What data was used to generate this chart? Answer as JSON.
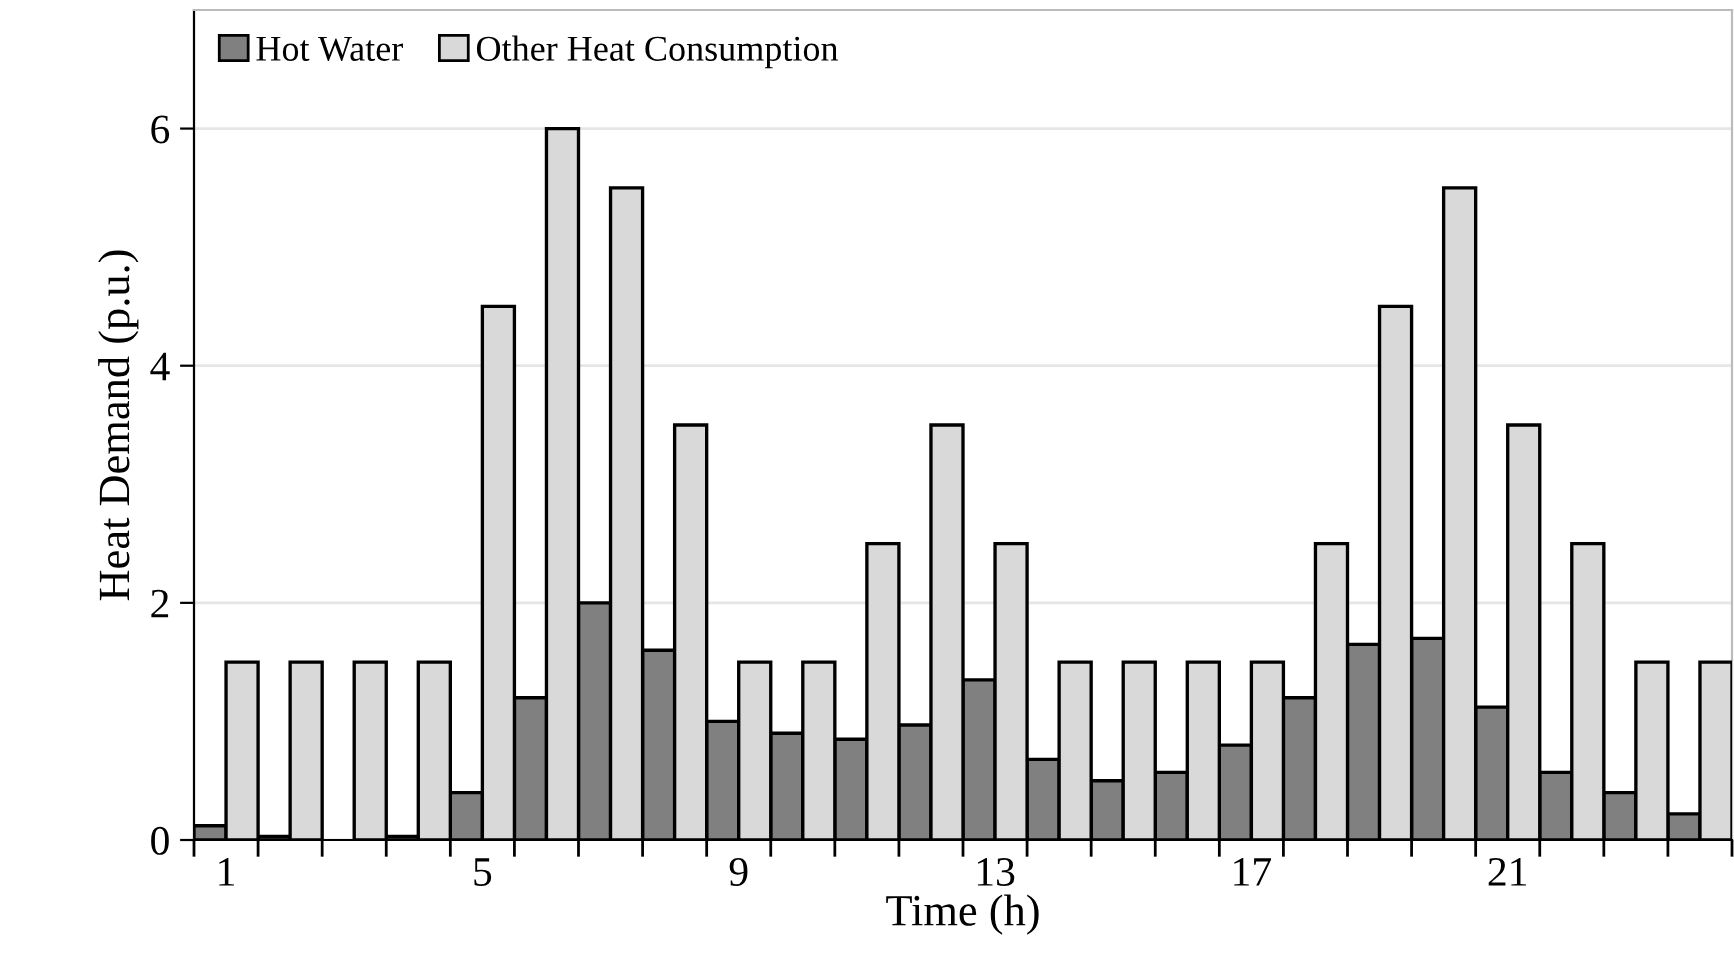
{
  "chart_data": {
    "type": "bar",
    "xlabel": "Time (h)",
    "ylabel": "Heat Demand (p.u.)",
    "categories": [
      "1",
      null,
      null,
      null,
      "5",
      null,
      null,
      null,
      "9",
      null,
      null,
      null,
      "13",
      null,
      null,
      null,
      "17",
      null,
      null,
      null,
      "21",
      null,
      null,
      null
    ],
    "series": [
      {
        "name": "Hot Water",
        "color": "#808080",
        "values": [
          0.12,
          0.03,
          null,
          0.03,
          0.4,
          1.2,
          2.0,
          1.6,
          1.0,
          0.9,
          0.85,
          0.97,
          1.35,
          0.68,
          0.5,
          0.57,
          0.8,
          1.2,
          1.65,
          1.7,
          1.12,
          0.57,
          0.4,
          0.22
        ]
      },
      {
        "name": "Other Heat Consumption",
        "color": "#d9d9d9",
        "values": [
          1.5,
          1.5,
          1.5,
          1.5,
          4.5,
          6,
          5.5,
          3.5,
          1.5,
          1.5,
          2.5,
          3.5,
          2.5,
          1.5,
          1.5,
          1.5,
          1.5,
          2.5,
          4.5,
          5.5,
          3.5,
          2.5,
          1.5,
          1.5
        ]
      }
    ],
    "ylim": [
      0,
      7
    ],
    "yticks": [
      0,
      2,
      4,
      6
    ],
    "grid": "y",
    "legend": "top left"
  }
}
